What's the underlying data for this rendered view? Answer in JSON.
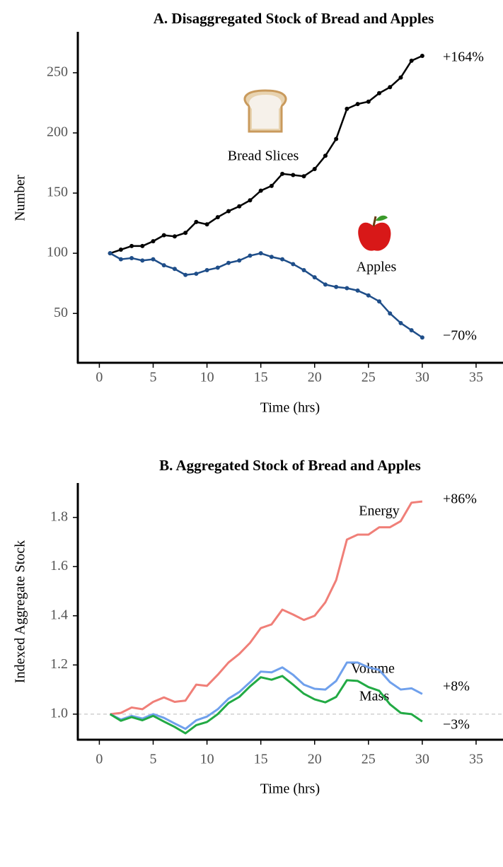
{
  "chart_data": [
    {
      "type": "line",
      "title": "A.  Disaggregated Stock of Bread and Apples",
      "xlabel": "Time (hrs)",
      "ylabel": "Number",
      "x": [
        1,
        2,
        3,
        4,
        5,
        6,
        7,
        8,
        9,
        10,
        11,
        12,
        13,
        14,
        15,
        16,
        17,
        18,
        19,
        20,
        21,
        22,
        23,
        24,
        25,
        26,
        27,
        28,
        29,
        30
      ],
      "series": [
        {
          "name": "Bread Slices",
          "color": "#000000",
          "values": [
            100,
            103,
            106,
            106,
            110,
            115,
            114,
            117,
            126,
            124,
            130,
            135,
            139,
            144,
            152,
            156,
            166,
            165,
            164,
            170,
            181,
            195,
            220,
            224,
            226,
            233,
            238,
            246,
            260,
            264
          ]
        },
        {
          "name": "Apples",
          "color": "#1f4e89",
          "values": [
            100,
            95,
            96,
            94,
            95,
            90,
            87,
            82,
            83,
            86,
            88,
            92,
            94,
            98,
            100,
            97,
            95,
            91,
            86,
            80,
            74,
            72,
            71,
            69,
            65,
            60,
            50,
            42,
            36,
            30
          ]
        }
      ],
      "markers": true,
      "annotations": [
        "+164%",
        "−70%"
      ],
      "xlim": [
        -2,
        37.5
      ],
      "xticks": [
        0,
        5,
        10,
        15,
        20,
        25,
        30,
        35
      ],
      "ylim": [
        9,
        284
      ],
      "yticks": [
        50,
        100,
        150,
        200,
        250
      ]
    },
    {
      "type": "line",
      "title": "B.  Aggregated Stock of Bread and Apples",
      "xlabel": "Time (hrs)",
      "ylabel": "Indexed Aggregate Stock",
      "x": [
        1,
        2,
        3,
        4,
        5,
        6,
        7,
        8,
        9,
        10,
        11,
        12,
        13,
        14,
        15,
        16,
        17,
        18,
        19,
        20,
        21,
        22,
        23,
        24,
        25,
        26,
        27,
        28,
        29,
        30
      ],
      "series": [
        {
          "name": "Energy",
          "color": "#f07f78",
          "values": [
            1.0,
            1.005,
            1.027,
            1.02,
            1.05,
            1.068,
            1.05,
            1.055,
            1.12,
            1.115,
            1.16,
            1.21,
            1.245,
            1.29,
            1.35,
            1.365,
            1.425,
            1.405,
            1.383,
            1.4,
            1.455,
            1.545,
            1.71,
            1.73,
            1.73,
            1.76,
            1.76,
            1.785,
            1.86,
            1.865
          ]
        },
        {
          "name": "Volume",
          "color": "#6fa0ec",
          "values": [
            1.0,
            0.978,
            0.993,
            0.982,
            1.0,
            0.985,
            0.962,
            0.94,
            0.975,
            0.99,
            1.02,
            1.063,
            1.09,
            1.13,
            1.173,
            1.17,
            1.19,
            1.16,
            1.12,
            1.103,
            1.1,
            1.135,
            1.21,
            1.21,
            1.19,
            1.18,
            1.13,
            1.1,
            1.105,
            1.082
          ]
        },
        {
          "name": "Mass",
          "color": "#22aa44",
          "values": [
            1.0,
            0.973,
            0.988,
            0.975,
            0.993,
            0.97,
            0.948,
            0.922,
            0.955,
            0.968,
            1.0,
            1.045,
            1.07,
            1.113,
            1.15,
            1.14,
            1.155,
            1.12,
            1.083,
            1.06,
            1.048,
            1.07,
            1.138,
            1.135,
            1.11,
            1.095,
            1.04,
            1.005,
            1.0,
            0.97
          ]
        }
      ],
      "markers": false,
      "hline": 1.0,
      "annotations": [
        "+86%",
        "+8%",
        "−3%"
      ],
      "xlim": [
        -2,
        37.5
      ],
      "xticks": [
        0,
        5,
        10,
        15,
        20,
        25,
        30,
        35
      ],
      "ylim": [
        0.896,
        1.94
      ],
      "yticks": [
        {
          "value": 1.0,
          "label": "1.0"
        },
        1.2,
        1.4,
        1.6,
        1.8
      ]
    }
  ]
}
